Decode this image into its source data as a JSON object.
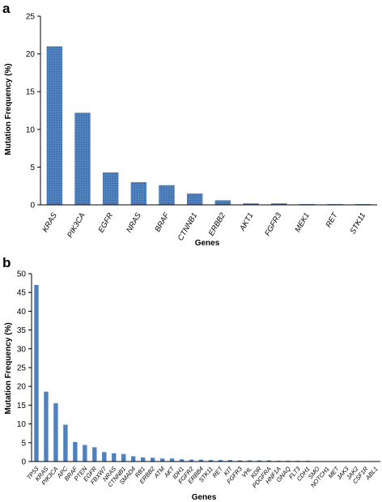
{
  "chart_data": [
    {
      "panel": "a",
      "type": "bar",
      "ylabel": "Mutation Frequency (%)",
      "xlabel": "Genes",
      "ylim": [
        0,
        25
      ],
      "yticks": [
        0,
        5,
        10,
        15,
        20,
        25
      ],
      "categories": [
        "KRAS",
        "PIK3CA",
        "EGFR",
        "NRAS",
        "BRAF",
        "CTNNB1",
        "ERBB2",
        "AKT1",
        "FGFR3",
        "MEK1",
        "RET",
        "STK11"
      ],
      "values": [
        21.0,
        12.2,
        4.3,
        3.0,
        2.6,
        1.5,
        0.6,
        0.2,
        0.2,
        0.1,
        0.1,
        0.1
      ],
      "color": "#4f81bd",
      "grid": false,
      "legend": "none"
    },
    {
      "panel": "b",
      "type": "bar",
      "ylabel": "Mutation Frequency (%)",
      "xlabel": "Genes",
      "ylim": [
        0,
        50
      ],
      "yticks": [
        0,
        5,
        10,
        15,
        20,
        25,
        30,
        35,
        40,
        45,
        50
      ],
      "categories": [
        "TP53",
        "KRAS",
        "PIK3CA",
        "APC",
        "BRAF",
        "PTEN",
        "EGFR",
        "FBXW7",
        "NRAS",
        "CTNNB1",
        "SMAD4",
        "RB1",
        "ERBB2",
        "ATM",
        "AKT",
        "IDH1",
        "FGFR2",
        "ERBB4",
        "STK11",
        "RET",
        "KIT",
        "FGFR3",
        "VHL",
        "KDR",
        "PDGFRA",
        "HNF1A",
        "GNAQ",
        "FLT3",
        "CDH1",
        "SMO",
        "NOTCH1",
        "MET",
        "JAK3",
        "JAK2",
        "CSF1R",
        "ABL1"
      ],
      "values": [
        47.0,
        18.6,
        15.5,
        9.8,
        5.2,
        4.4,
        3.8,
        2.5,
        2.2,
        2.0,
        1.4,
        1.1,
        1.0,
        0.8,
        0.8,
        0.6,
        0.5,
        0.5,
        0.4,
        0.4,
        0.4,
        0.3,
        0.3,
        0.3,
        0.3,
        0.2,
        0.2,
        0.2,
        0.2,
        0.1,
        0.1,
        0.1,
        0.1,
        0.1,
        0.1,
        0.1
      ],
      "color": "#4f81bd",
      "grid": false,
      "legend": "none"
    }
  ]
}
